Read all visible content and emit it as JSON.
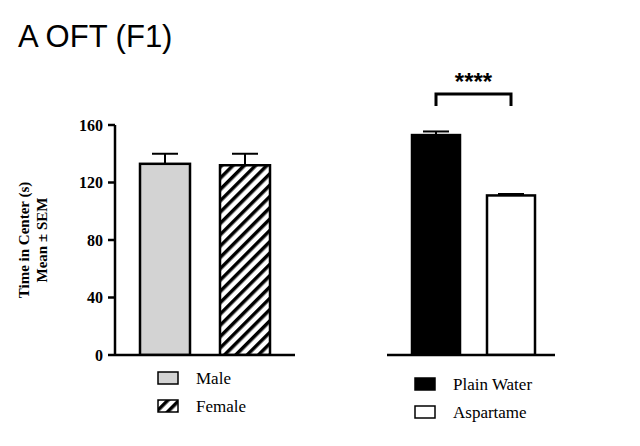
{
  "chart_data": [
    {
      "type": "bar",
      "title": "A OFT (F1)",
      "y_label": [
        "Time in Center (s)",
        "Mean ± SEM"
      ],
      "categories": [
        "Male",
        "Female"
      ],
      "values": [
        133,
        132
      ],
      "errors": [
        7,
        8
      ],
      "colors": [
        "#d3d3d3",
        "#ffffff"
      ],
      "ylim": [
        0,
        160
      ],
      "yticks": [
        0,
        40,
        80,
        120,
        160
      ],
      "legend": "bottom",
      "tick_labels": "y"
    },
    {
      "type": "bar",
      "categories": [
        "Plain Water",
        "Aspartame"
      ],
      "values": [
        153,
        111
      ],
      "errors": [
        2.5,
        1
      ],
      "colors": [
        "#000000",
        "#ffffff"
      ],
      "ylim": [
        0,
        160
      ],
      "annotation": "****",
      "legend": "bottom",
      "tick_labels": false
    }
  ]
}
